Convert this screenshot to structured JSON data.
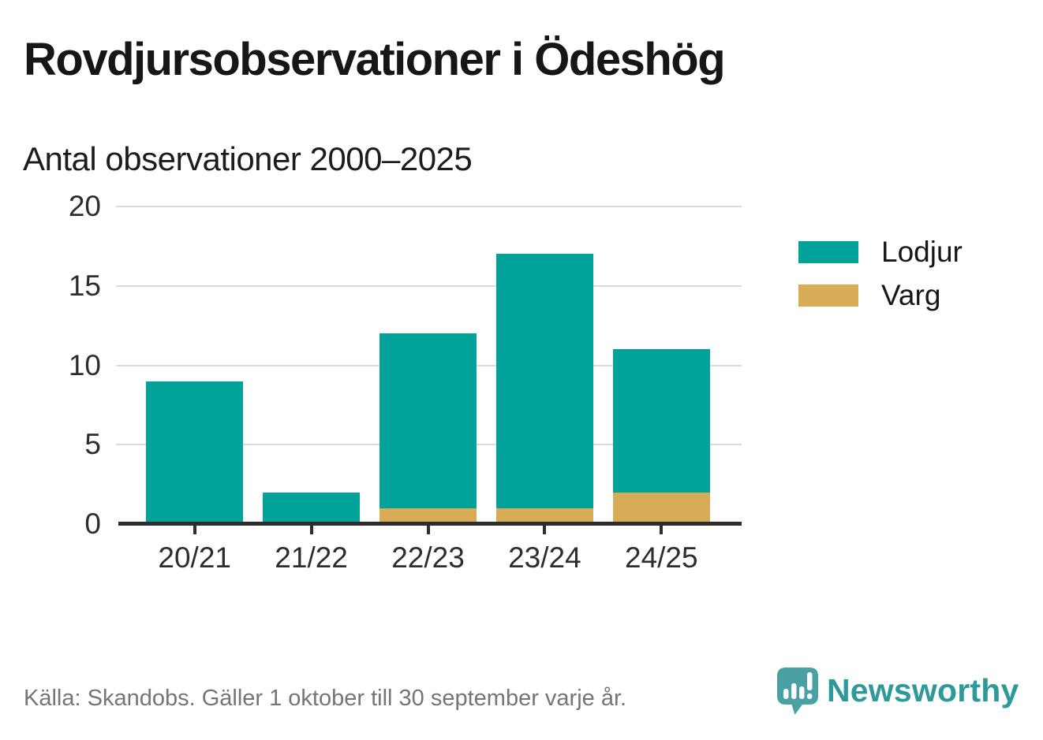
{
  "header": {
    "title": "Rovdjursobservationer i Ödeshög",
    "subtitle": "Antal observationer 2000–2025"
  },
  "chart_data": {
    "type": "bar",
    "stacked": true,
    "title": "Rovdjursobservationer i Ödeshög",
    "subtitle": "Antal observationer 2000–2025",
    "categories": [
      "20/21",
      "21/22",
      "22/23",
      "23/24",
      "24/25"
    ],
    "series": [
      {
        "name": "Lodjur",
        "color": "#00a29a",
        "values": [
          9,
          2,
          11,
          16,
          9
        ]
      },
      {
        "name": "Varg",
        "color": "#d8ab56",
        "values": [
          0,
          0,
          1,
          1,
          2
        ]
      }
    ],
    "stack_bottom_to_top": [
      "Varg",
      "Lodjur"
    ],
    "totals": [
      9,
      2,
      12,
      17,
      11
    ],
    "xlabel": "",
    "ylabel": "",
    "ylim": [
      0,
      20
    ],
    "yticks": [
      0,
      5,
      10,
      15,
      20
    ],
    "grid": "horizontal",
    "legend_position": "right"
  },
  "legend": {
    "items": [
      {
        "label": "Lodjur",
        "color": "#00a29a"
      },
      {
        "label": "Varg",
        "color": "#d8ab56"
      }
    ]
  },
  "footer": {
    "source": "Källa: Skandobs. Gäller 1 oktober till 30 september varje år.",
    "brand": "Newsworthy"
  },
  "colors": {
    "lodjur": "#00a29a",
    "varg": "#d8ab56",
    "axis": "#2d2d2d",
    "gridline": "#dbdbdb",
    "brand_text": "#2f9899",
    "brand_mark": "#4aa0a2"
  }
}
